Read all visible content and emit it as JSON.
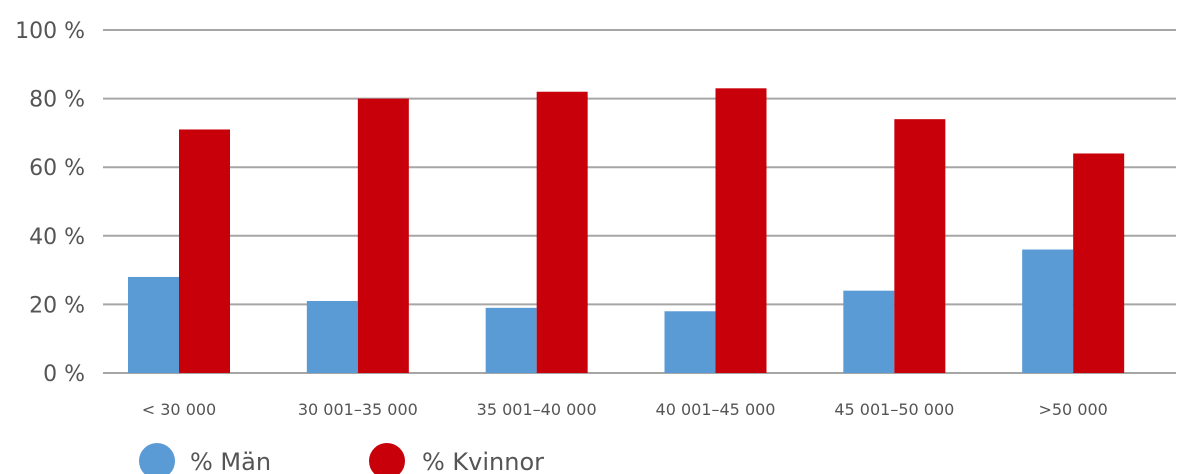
{
  "chart_data": {
    "type": "bar",
    "categories": [
      "< 30 000",
      "30 001–35 000",
      "35 001–40 000",
      "40 001–45 000",
      "45 001–50 000",
      ">50 000"
    ],
    "series": [
      {
        "name": "% Män",
        "values": [
          28,
          21,
          19,
          18,
          24,
          36
        ],
        "color": "#5b9bd5"
      },
      {
        "name": "% Kvinnor",
        "values": [
          71,
          80,
          82,
          83,
          74,
          64
        ],
        "color": "#c8000a"
      }
    ],
    "y_tick_labels": [
      "0 %",
      "20 %",
      "40 %",
      "60 %",
      "80 %",
      "100 %"
    ],
    "y_ticks": [
      0,
      20,
      40,
      60,
      80,
      100
    ],
    "ylim": [
      0,
      100
    ],
    "grid": true,
    "legend": "bottom-left"
  }
}
